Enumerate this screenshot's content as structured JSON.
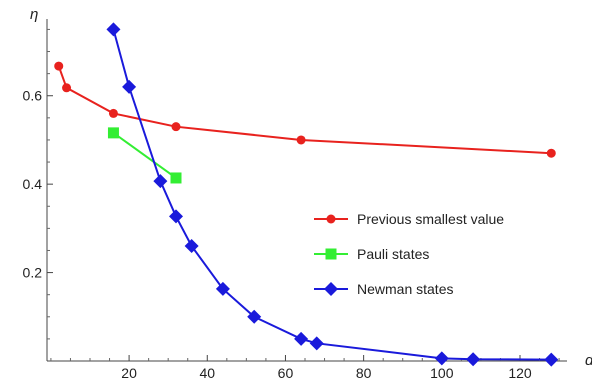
{
  "chart_data": {
    "type": "line",
    "xlabel": "d",
    "ylabel": "η",
    "xlim": [
      -1,
      131
    ],
    "ylim": [
      0,
      0.76
    ],
    "x_ticks": [
      20,
      40,
      60,
      80,
      100,
      120
    ],
    "y_ticks": [
      0.2,
      0.4,
      0.6
    ],
    "x_tick_labels": [
      "20",
      "40",
      "60",
      "80",
      "100",
      "120"
    ],
    "y_tick_labels": [
      "0.2",
      "0.4",
      "0.6"
    ],
    "grid": false,
    "legend_position": "right",
    "series": [
      {
        "name": "Previous smallest value",
        "color": "#e8221e",
        "marker": "circle",
        "x": [
          2,
          4,
          16,
          32,
          64,
          128
        ],
        "y": [
          0.667,
          0.618,
          0.56,
          0.53,
          0.5,
          0.47
        ]
      },
      {
        "name": "Pauli states",
        "color": "#33ee33",
        "marker": "square",
        "x": [
          16,
          32
        ],
        "y": [
          0.516,
          0.414
        ]
      },
      {
        "name": "Newman states",
        "color": "#1a1adb",
        "marker": "diamond",
        "x": [
          16,
          20,
          28,
          32,
          36,
          44,
          52,
          64,
          68,
          100,
          108,
          128
        ],
        "y": [
          0.75,
          0.62,
          0.407,
          0.327,
          0.26,
          0.163,
          0.1,
          0.05,
          0.04,
          0.006,
          0.004,
          0.003
        ]
      }
    ]
  }
}
